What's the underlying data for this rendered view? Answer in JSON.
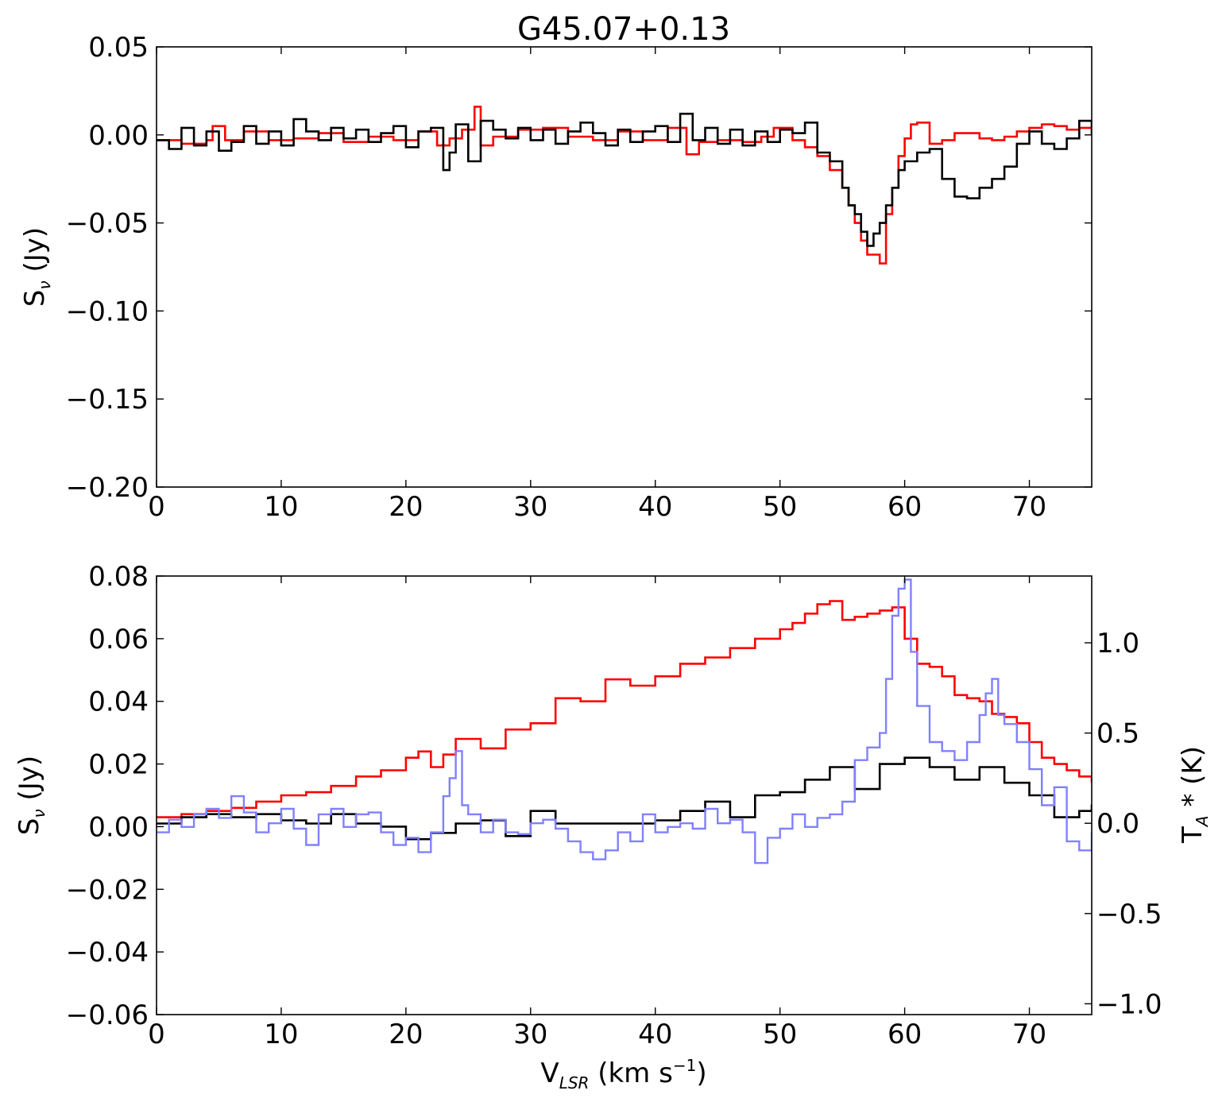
{
  "figure": {
    "title": "G45.07+0.13",
    "top_ylabel": "S",
    "top_ylabel_sub": "ν",
    "top_ylabel_rest": " (Jy)",
    "bottom_ylabel": "S",
    "bottom_ylabel_sub": "ν",
    "bottom_ylabel_rest": " (Jy)",
    "right_ylabel": "T",
    "right_ylabel_sub": "A",
    "right_ylabel_rest": " * (K)",
    "xlabel": "V",
    "xlabel_sub": "LSR",
    "xlabel_rest": " (km s",
    "xlabel_sup": "−1",
    "xlabel_end": ")"
  },
  "chart_data": [
    {
      "type": "line",
      "panel": "top",
      "title": "G45.07+0.13",
      "ylabel": "Sν (Jy)",
      "xlim": [
        0,
        75
      ],
      "ylim": [
        -0.2,
        0.05
      ],
      "xticks": [
        "0",
        "10",
        "20",
        "30",
        "40",
        "50",
        "60",
        "70"
      ],
      "yticks": [
        "0.05",
        "0.00",
        "−0.05",
        "−0.10",
        "−0.15",
        "−0.20"
      ],
      "grid": false,
      "step": true,
      "colors": {
        "series1": "#ff0000",
        "series2": "#000000"
      },
      "series": [
        {
          "color": "#ff0000",
          "x": [
            0,
            2,
            4,
            4.5,
            5.5,
            7,
            9,
            11,
            13,
            15,
            17,
            19,
            21,
            22.5,
            23.5,
            24.5,
            25.5,
            26,
            27,
            29,
            31,
            33,
            35,
            37,
            39,
            41,
            42.5,
            43.5,
            45,
            47,
            48.5,
            49.5,
            51,
            52,
            53,
            54,
            55,
            55.5,
            56,
            56.5,
            57,
            58,
            58.5,
            59,
            59.5,
            60,
            60.5,
            61,
            62,
            63,
            64,
            66,
            67,
            68,
            69,
            70,
            71,
            72,
            73,
            74,
            75
          ],
          "y": [
            -0.003,
            -0.005,
            -0.003,
            0.005,
            -0.003,
            0.002,
            -0.003,
            -0.002,
            0.001,
            -0.004,
            -0.001,
            -0.003,
            0.002,
            -0.006,
            -0.002,
            0.003,
            0.016,
            -0.006,
            -0.001,
            0.003,
            0.004,
            -0.001,
            -0.003,
            0.002,
            -0.003,
            0.004,
            -0.011,
            -0.004,
            -0.003,
            -0.004,
            -0.001,
            0.004,
            -0.003,
            -0.007,
            -0.012,
            -0.02,
            -0.03,
            -0.04,
            -0.05,
            -0.06,
            -0.068,
            -0.073,
            -0.045,
            -0.03,
            -0.012,
            -0.002,
            0.006,
            0.007,
            -0.005,
            -0.003,
            0.001,
            -0.002,
            -0.003,
            -0.001,
            0.002,
            0.004,
            0.006,
            0.005,
            0.003,
            0.004,
            0.003
          ]
        },
        {
          "color": "#000000",
          "x": [
            0,
            1,
            2,
            3,
            4,
            5,
            6,
            7,
            8,
            9,
            10,
            11,
            12,
            13,
            14,
            15,
            16,
            17,
            18,
            19,
            20,
            21,
            22,
            23,
            23.5,
            24,
            25,
            26,
            27,
            28,
            29,
            30,
            31,
            32,
            33,
            34,
            35,
            36,
            37,
            38,
            39,
            40,
            41,
            42,
            43,
            44,
            45,
            46,
            47,
            48,
            49,
            50,
            51,
            52,
            53,
            54,
            55,
            55.5,
            56,
            56.5,
            57,
            57.5,
            58,
            58.5,
            59,
            59.5,
            60,
            61,
            62,
            63,
            64,
            65,
            66,
            67,
            68,
            69,
            70,
            71,
            72,
            73,
            74,
            75
          ],
          "y": [
            -0.003,
            -0.008,
            0.004,
            -0.006,
            0.002,
            -0.009,
            -0.004,
            0.005,
            -0.005,
            0.002,
            -0.006,
            0.009,
            0.002,
            -0.003,
            0.004,
            -0.002,
            0.003,
            -0.004,
            0.001,
            0.005,
            -0.007,
            0.002,
            0.004,
            -0.02,
            -0.01,
            0.006,
            -0.015,
            0.008,
            0.003,
            -0.002,
            0.004,
            -0.003,
            0.003,
            -0.005,
            0.002,
            0.007,
            0.001,
            -0.006,
            0.003,
            -0.004,
            0.002,
            0.005,
            -0.004,
            0.012,
            -0.003,
            0.004,
            -0.005,
            0.003,
            -0.006,
            0.002,
            -0.004,
            0.003,
            0.001,
            0.007,
            -0.01,
            -0.015,
            -0.03,
            -0.04,
            -0.045,
            -0.055,
            -0.063,
            -0.056,
            -0.05,
            -0.04,
            -0.03,
            -0.02,
            -0.015,
            -0.01,
            -0.008,
            -0.025,
            -0.035,
            -0.036,
            -0.03,
            -0.025,
            -0.018,
            -0.005,
            0.002,
            -0.005,
            -0.008,
            -0.002,
            0.008,
            0.0
          ]
        }
      ]
    },
    {
      "type": "line",
      "panel": "bottom",
      "ylabel": "Sν (Jy)",
      "y2label": "TA* (K)",
      "xlabel": "VLSR (km s−1)",
      "xlim": [
        0,
        75
      ],
      "ylim": [
        -0.06,
        0.08
      ],
      "y2lim": [
        -1.06,
        1.37
      ],
      "xticks": [
        "0",
        "10",
        "20",
        "30",
        "40",
        "50",
        "60",
        "70"
      ],
      "yticks": [
        "0.08",
        "0.06",
        "0.04",
        "0.02",
        "0.00",
        "−0.02",
        "−0.04",
        "−0.06"
      ],
      "y2ticks": [
        "1.0",
        "0.5",
        "0.0",
        "−0.5",
        "−1.0"
      ],
      "grid": false,
      "step": true,
      "series": [
        {
          "color": "#ff0000",
          "axis": "left",
          "x": [
            0,
            2,
            4,
            6,
            8,
            10,
            12,
            14,
            16,
            18,
            20,
            21,
            22,
            23,
            24,
            26,
            28,
            30,
            32,
            34,
            36,
            38,
            40,
            42,
            44,
            46,
            48,
            50,
            51,
            52,
            53,
            54,
            55,
            56,
            57,
            58,
            59,
            60,
            61,
            62,
            63,
            64,
            65,
            66,
            67,
            68,
            69,
            70,
            71,
            72,
            73,
            74,
            75
          ],
          "y": [
            0.003,
            0.004,
            0.005,
            0.006,
            0.008,
            0.01,
            0.011,
            0.013,
            0.016,
            0.018,
            0.022,
            0.024,
            0.019,
            0.023,
            0.028,
            0.025,
            0.031,
            0.033,
            0.041,
            0.04,
            0.047,
            0.045,
            0.048,
            0.052,
            0.054,
            0.057,
            0.06,
            0.063,
            0.065,
            0.068,
            0.071,
            0.072,
            0.066,
            0.067,
            0.068,
            0.069,
            0.07,
            0.06,
            0.052,
            0.051,
            0.048,
            0.042,
            0.041,
            0.04,
            0.036,
            0.035,
            0.033,
            0.027,
            0.022,
            0.02,
            0.018,
            0.016,
            0.014
          ]
        },
        {
          "color": "#000000",
          "axis": "left",
          "x": [
            0,
            2,
            4,
            6,
            8,
            10,
            12,
            14,
            16,
            18,
            20,
            22,
            24,
            26,
            28,
            30,
            32,
            34,
            36,
            38,
            40,
            42,
            44,
            46,
            48,
            50,
            52,
            54,
            56,
            58,
            60,
            62,
            64,
            66,
            68,
            70,
            72,
            74,
            75
          ],
          "y": [
            0.001,
            0.003,
            0.004,
            0.003,
            0.004,
            0.002,
            0.001,
            0.004,
            0.001,
            0.0,
            -0.004,
            -0.002,
            0.001,
            0.002,
            -0.003,
            0.005,
            0.001,
            0.001,
            0.001,
            0.001,
            0.002,
            0.005,
            0.008,
            0.003,
            0.01,
            0.011,
            0.015,
            0.019,
            0.012,
            0.02,
            0.022,
            0.019,
            0.015,
            0.019,
            0.014,
            0.01,
            0.003,
            0.005,
            0.007
          ]
        },
        {
          "color": "#8080ff",
          "axis": "right",
          "x": [
            0,
            1,
            2,
            3,
            4,
            5,
            6,
            7,
            8,
            9,
            10,
            11,
            12,
            13,
            14,
            15,
            16,
            17,
            18,
            19,
            20,
            21,
            22,
            23,
            23.5,
            24,
            24.5,
            25,
            26,
            27,
            28,
            29,
            30,
            31,
            32,
            33,
            34,
            35,
            36,
            37,
            38,
            39,
            40,
            41,
            42,
            43,
            44,
            45,
            46,
            47,
            48,
            49,
            50,
            51,
            52,
            53,
            54,
            55,
            56,
            57,
            58,
            58.5,
            59,
            59.5,
            60,
            60.5,
            61,
            62,
            63,
            64,
            65,
            66,
            66.5,
            67,
            67.5,
            68,
            69,
            70,
            71,
            72,
            73,
            74,
            75
          ],
          "y": [
            -0.05,
            0.02,
            -0.02,
            0.05,
            0.08,
            0.03,
            0.15,
            0.06,
            -0.05,
            0.0,
            0.08,
            -0.03,
            -0.12,
            0.05,
            0.08,
            -0.02,
            0.05,
            0.06,
            -0.05,
            -0.12,
            -0.08,
            -0.16,
            -0.05,
            0.15,
            0.25,
            0.4,
            0.1,
            0.05,
            -0.05,
            0.02,
            -0.05,
            -0.06,
            0.0,
            0.02,
            -0.03,
            -0.1,
            -0.16,
            -0.2,
            -0.15,
            -0.05,
            -0.1,
            0.05,
            -0.05,
            -0.02,
            0.0,
            -0.03,
            0.08,
            0.0,
            0.02,
            -0.05,
            -0.22,
            -0.08,
            -0.03,
            0.05,
            -0.02,
            0.03,
            0.05,
            0.12,
            0.35,
            0.42,
            0.5,
            0.8,
            1.15,
            1.3,
            1.35,
            0.95,
            0.65,
            0.45,
            0.4,
            0.35,
            0.45,
            0.6,
            0.72,
            0.8,
            0.6,
            0.55,
            0.45,
            0.3,
            0.1,
            0.2,
            -0.1,
            -0.15,
            -0.05
          ]
        }
      ]
    }
  ]
}
